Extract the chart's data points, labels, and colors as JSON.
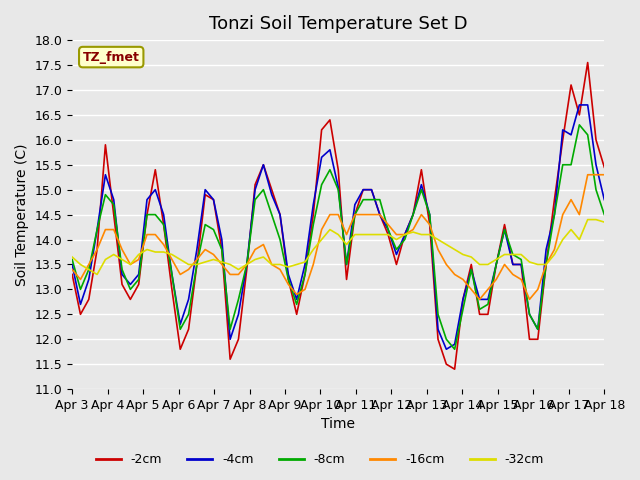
{
  "title": "Tonzi Soil Temperature Set D",
  "xlabel": "Time",
  "ylabel": "Soil Temperature (C)",
  "ylim": [
    11.0,
    18.0
  ],
  "yticks": [
    11.0,
    11.5,
    12.0,
    12.5,
    13.0,
    13.5,
    14.0,
    14.5,
    15.0,
    15.5,
    16.0,
    16.5,
    17.0,
    17.5,
    18.0
  ],
  "xtick_labels": [
    "Apr 3",
    "Apr 4",
    "Apr 5",
    "Apr 6",
    "Apr 7",
    "Apr 8",
    "Apr 9",
    "Apr 10",
    "Apr 11",
    "Apr 12",
    "Apr 13",
    "Apr 14",
    "Apr 15",
    "Apr 16",
    "Apr 17",
    "Apr 18"
  ],
  "legend_label": "TZ_fmet",
  "series": {
    "-2cm": {
      "color": "#cc0000",
      "y": [
        13.3,
        12.5,
        12.8,
        13.8,
        15.9,
        14.5,
        13.1,
        12.8,
        13.1,
        14.5,
        15.4,
        14.3,
        13.0,
        11.8,
        12.2,
        13.5,
        14.9,
        14.8,
        13.8,
        11.6,
        12.0,
        13.4,
        15.1,
        15.5,
        15.0,
        14.5,
        13.2,
        12.5,
        13.3,
        14.5,
        16.2,
        16.4,
        15.4,
        13.2,
        14.5,
        15.0,
        15.0,
        14.5,
        14.1,
        13.5,
        14.1,
        14.5,
        15.4,
        14.3,
        12.0,
        11.5,
        11.4,
        12.8,
        13.5,
        12.5,
        12.5,
        13.5,
        14.3,
        13.5,
        13.5,
        12.0,
        12.0,
        13.5,
        14.8,
        16.0,
        17.1,
        16.5,
        17.55,
        16.0,
        15.45
      ]
    },
    "-4cm": {
      "color": "#0000cc",
      "y": [
        13.5,
        12.7,
        13.2,
        14.2,
        15.3,
        14.8,
        13.3,
        13.1,
        13.3,
        14.8,
        15.0,
        14.5,
        13.3,
        12.3,
        12.8,
        13.8,
        15.0,
        14.8,
        14.0,
        12.0,
        12.5,
        13.5,
        15.0,
        15.5,
        14.9,
        14.5,
        13.3,
        12.8,
        13.5,
        14.7,
        15.65,
        15.8,
        15.05,
        13.5,
        14.7,
        15.0,
        15.0,
        14.5,
        14.2,
        13.7,
        14.1,
        14.5,
        15.1,
        14.5,
        12.2,
        11.8,
        11.9,
        12.8,
        13.4,
        12.8,
        12.8,
        13.5,
        14.2,
        13.5,
        13.5,
        12.5,
        12.2,
        13.8,
        14.5,
        16.2,
        16.1,
        16.7,
        16.7,
        15.5,
        14.8
      ]
    },
    "-8cm": {
      "color": "#00aa00",
      "y": [
        13.6,
        13.0,
        13.4,
        14.2,
        14.9,
        14.7,
        13.4,
        13.0,
        13.2,
        14.5,
        14.5,
        14.3,
        13.3,
        12.2,
        12.5,
        13.5,
        14.3,
        14.2,
        13.8,
        12.2,
        12.8,
        13.5,
        14.8,
        15.0,
        14.5,
        14.0,
        13.2,
        12.7,
        13.3,
        14.3,
        15.1,
        15.4,
        15.0,
        13.5,
        14.5,
        14.8,
        14.8,
        14.8,
        14.2,
        13.8,
        14.0,
        14.5,
        15.0,
        14.5,
        12.5,
        12.0,
        11.8,
        12.6,
        13.4,
        12.6,
        12.7,
        13.5,
        14.2,
        13.7,
        13.6,
        12.5,
        12.2,
        13.5,
        14.5,
        15.5,
        15.5,
        16.3,
        16.1,
        15.0,
        14.5
      ]
    },
    "-16cm": {
      "color": "#ff8800",
      "y": [
        13.4,
        13.2,
        13.5,
        13.8,
        14.2,
        14.2,
        13.8,
        13.5,
        13.6,
        14.1,
        14.1,
        13.9,
        13.6,
        13.3,
        13.4,
        13.6,
        13.8,
        13.7,
        13.5,
        13.3,
        13.3,
        13.5,
        13.8,
        13.9,
        13.5,
        13.4,
        13.1,
        12.9,
        13.0,
        13.5,
        14.2,
        14.5,
        14.5,
        14.1,
        14.5,
        14.5,
        14.5,
        14.5,
        14.3,
        14.1,
        14.1,
        14.2,
        14.5,
        14.3,
        13.8,
        13.5,
        13.3,
        13.2,
        13.0,
        12.8,
        13.0,
        13.2,
        13.5,
        13.3,
        13.2,
        12.8,
        13.0,
        13.5,
        13.8,
        14.5,
        14.8,
        14.5,
        15.3,
        15.3,
        15.3
      ]
    },
    "-32cm": {
      "color": "#dddd00",
      "y": [
        13.65,
        13.5,
        13.4,
        13.3,
        13.6,
        13.7,
        13.6,
        13.5,
        13.7,
        13.8,
        13.75,
        13.75,
        13.7,
        13.6,
        13.5,
        13.5,
        13.55,
        13.6,
        13.55,
        13.5,
        13.4,
        13.5,
        13.6,
        13.65,
        13.5,
        13.5,
        13.45,
        13.5,
        13.55,
        13.8,
        14.0,
        14.2,
        14.1,
        13.9,
        14.1,
        14.1,
        14.1,
        14.1,
        14.1,
        14.0,
        14.1,
        14.15,
        14.1,
        14.1,
        14.0,
        13.9,
        13.8,
        13.7,
        13.65,
        13.5,
        13.5,
        13.6,
        13.7,
        13.7,
        13.7,
        13.55,
        13.5,
        13.5,
        13.7,
        14.0,
        14.2,
        14.0,
        14.4,
        14.4,
        14.35
      ]
    }
  },
  "bg_color": "#e8e8e8",
  "grid_color": "#ffffff",
  "title_fontsize": 13,
  "axis_fontsize": 10,
  "tick_fontsize": 9,
  "legend_box_facecolor": "#ffffcc",
  "legend_box_edgecolor": "#999900",
  "legend_text_color": "#880000"
}
